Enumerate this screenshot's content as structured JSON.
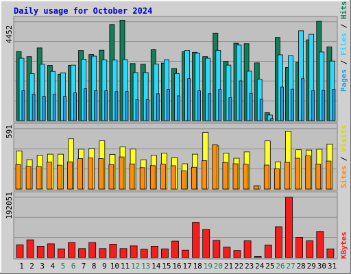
{
  "title": "Daily usage for October 2024",
  "colors": {
    "frame_outer": "#ececec",
    "frame_dark": "#8a8a8a",
    "panel_bg": "#c0c0c0",
    "grid": "#8c8c8c",
    "hits": "#11805a",
    "files": "#2ad9ff",
    "pages": "#1e9ee8",
    "visits": "#ffff22",
    "sites": "#ff8c0a",
    "kbytes": "#f81c1c",
    "title": "#0000c8",
    "weekend_tick": "#11805a"
  },
  "labels": {
    "hits_max": "4452",
    "sites_max": "591",
    "kbytes_max": "192051",
    "legend_top": {
      "pages": "Pages",
      "files": "Files",
      "hits": "Hits",
      "sep": " / "
    },
    "legend_mid": {
      "sites": "Sites",
      "visits": "Visits",
      "sep": " / "
    },
    "legend_bot": {
      "kbytes": "KBytes"
    }
  },
  "chart_data": {
    "type": "bar",
    "title": "Daily usage for October 2024",
    "categories": [
      "1",
      "2",
      "3",
      "4",
      "5",
      "6",
      "7",
      "8",
      "9",
      "10",
      "11",
      "12",
      "13",
      "14",
      "15",
      "16",
      "17",
      "18",
      "19",
      "20",
      "21",
      "22",
      "23",
      "24",
      "25",
      "26",
      "27",
      "28",
      "29",
      "30",
      "31"
    ],
    "weekend_days": [
      "5",
      "6",
      "12",
      "13",
      "19",
      "20",
      "26",
      "27"
    ],
    "panels": [
      {
        "name": "hits_files_pages",
        "max_label": "4452",
        "ylim": [
          0,
          4452
        ],
        "series": [
          {
            "name": "Hits",
            "values": [
              2990,
              2770,
              3150,
              2390,
              2010,
              2390,
              3040,
              2860,
              3050,
              4160,
              4350,
              2470,
              2440,
              3070,
              2490,
              2260,
              2980,
              2960,
              2770,
              3790,
              2560,
              3350,
              3330,
              2500,
              340,
              3600,
              2300,
              2520,
              3500,
              4300,
              3190
            ]
          },
          {
            "name": "Files",
            "values": [
              2700,
              2030,
              2440,
              2130,
              2070,
              2400,
              2660,
              2790,
              2630,
              2620,
              2640,
              2080,
              2080,
              2450,
              2640,
              2040,
              3040,
              2920,
              2700,
              3040,
              2400,
              3270,
              2140,
              1790,
              240,
              2850,
              2810,
              3890,
              3740,
              2970,
              2580
            ]
          },
          {
            "name": "Pages",
            "values": [
              1290,
              1150,
              1050,
              1150,
              1050,
              1200,
              1380,
              1290,
              1290,
              1250,
              1260,
              910,
              910,
              1160,
              1350,
              1070,
              1820,
              1290,
              1160,
              1350,
              990,
              1720,
              1180,
              920,
              80,
              1450,
              1360,
              1820,
              1300,
              1310,
              1350
            ]
          }
        ]
      },
      {
        "name": "sites_visits",
        "max_label": "591",
        "ylim": [
          0,
          591
        ],
        "series": [
          {
            "name": "Visits",
            "values": [
              350,
              270,
              310,
              320,
              320,
              461,
              366,
              372,
              443,
              318,
              388,
              367,
              269,
              311,
              330,
              289,
              232,
              320,
              520,
              397,
              330,
              283,
              341,
              30,
              442,
              250,
              531,
              360,
              358,
              365,
              413
            ]
          },
          {
            "name": "Sites",
            "values": [
              225,
              208,
              206,
              248,
              219,
              250,
              280,
              285,
              280,
              224,
              295,
              231,
              196,
              215,
              229,
              214,
              168,
              200,
              260,
              408,
              244,
              232,
              228,
              28,
              220,
              187,
              246,
              283,
              304,
              230,
              257
            ]
          }
        ]
      },
      {
        "name": "kbytes",
        "max_label": "192051",
        "ylim": [
          0,
          192051
        ],
        "series": [
          {
            "name": "KBytes",
            "values": [
              38000,
              53000,
              34000,
              41000,
              26000,
              45000,
              27000,
              45000,
              27000,
              40000,
              27000,
              35000,
              25000,
              34000,
              26000,
              49000,
              22000,
              105000,
              84000,
              51000,
              31000,
              21000,
              50000,
              3000,
              37000,
              92000,
              180000,
              60000,
              50000,
              78000,
              26000
            ]
          }
        ]
      }
    ]
  }
}
